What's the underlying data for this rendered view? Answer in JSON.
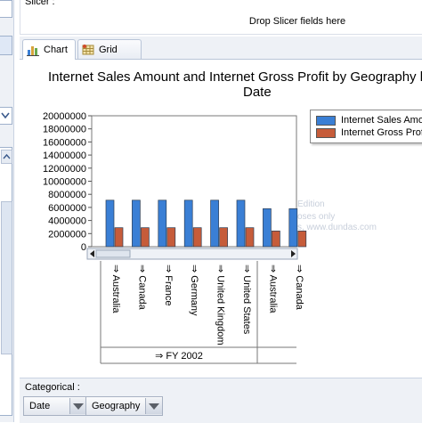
{
  "slicer": {
    "label": "Slicer :",
    "placeholder": "Drop Slicer fields here"
  },
  "tabs": [
    {
      "label": "Chart",
      "icon": "chart-icon",
      "active": true
    },
    {
      "label": "Grid",
      "icon": "grid-icon",
      "active": false
    }
  ],
  "chart_title": [
    "Internet Sales Amount and Internet Gross Profit by Geography b",
    "Date"
  ],
  "watermark": [
    "Edition",
    "oses only",
    "s, www.dundas.com"
  ],
  "legend": [
    {
      "label": "Internet Sales Amou",
      "color": "#3a7fd5"
    },
    {
      "label": "Internet Gross Profi",
      "color": "#c65c3a"
    }
  ],
  "chart_data": {
    "type": "bar",
    "categories": [
      "Australia",
      "Canada",
      "France",
      "Germany",
      "United Kingdom",
      "United States",
      "Australia",
      "Canada"
    ],
    "groups": [
      {
        "label": "FY 2002",
        "count": 6
      }
    ],
    "series": [
      {
        "name": "Internet Sales Amou",
        "values": [
          7100000,
          7100000,
          7100000,
          7100000,
          7100000,
          7100000,
          5800000,
          5800000
        ]
      },
      {
        "name": "Internet Gross Profi",
        "values": [
          2900000,
          2900000,
          2900000,
          2900000,
          2900000,
          2900000,
          2400000,
          2400000
        ]
      }
    ],
    "yticks": [
      "20000000",
      "18000000",
      "16000000",
      "14000000",
      "12000000",
      "10000000",
      "8000000",
      "6000000",
      "4000000",
      "2000000",
      "0"
    ],
    "ylim": [
      0,
      20000000
    ],
    "colors": [
      "#3a7fd5",
      "#c65c3a"
    ]
  },
  "categorical": {
    "label": "Categorical :",
    "fields": [
      "Date",
      "Geography"
    ]
  }
}
